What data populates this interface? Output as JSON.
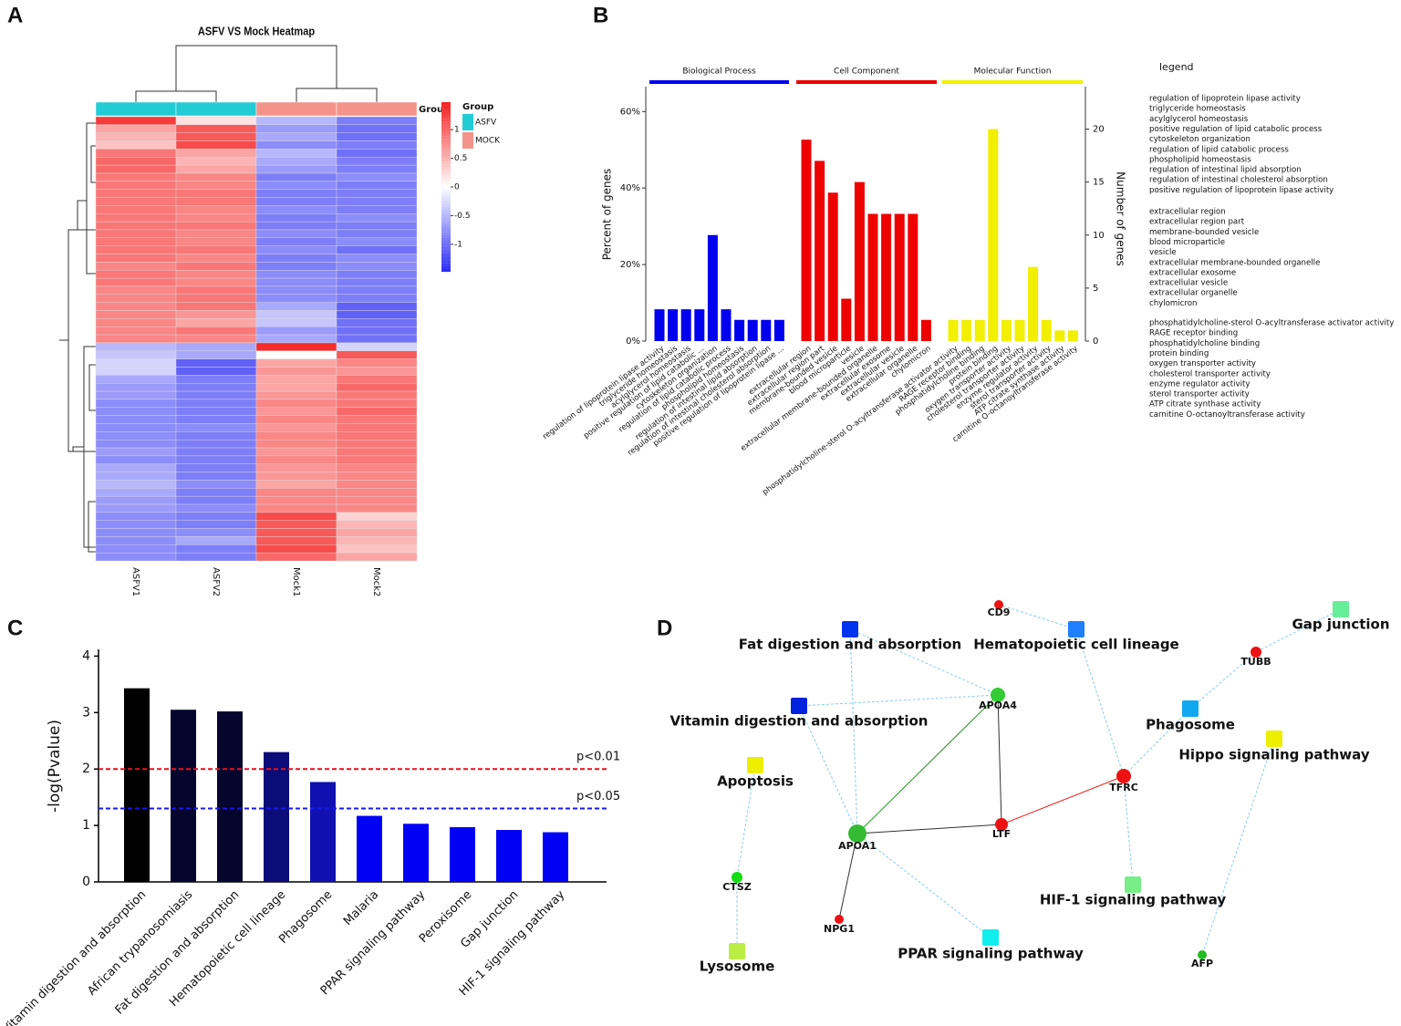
{
  "chart_data": [
    {
      "type": "heatmap",
      "panel": "A",
      "title": "ASFV VS Mock Heatmap",
      "columns": [
        "ASFV1",
        "ASFV2",
        "Mock1",
        "Mock2"
      ],
      "group_label": "Group",
      "groups": [
        {
          "name": "ASFV",
          "color": "#22ccd4",
          "columns": [
            0,
            1
          ]
        },
        {
          "name": "MOCK",
          "color": "#f4938a",
          "columns": [
            2,
            3
          ]
        }
      ],
      "low_color": "#2b2bf5",
      "mid_color": "#ffffff",
      "high_color": "#f52020",
      "clim": [
        -1.48,
        1.48
      ],
      "cticks": [
        -1,
        -0.5,
        0,
        0.5,
        1
      ],
      "rows": [
        [
          1.3,
          0.2,
          -0.5,
          -0.9
        ],
        [
          0.6,
          1.1,
          -0.7,
          -1.0
        ],
        [
          0.5,
          1.1,
          -0.6,
          -1.0
        ],
        [
          0.4,
          1.2,
          -0.8,
          -0.9
        ],
        [
          0.9,
          0.6,
          -0.5,
          -1.0
        ],
        [
          1.0,
          0.5,
          -0.6,
          -0.9
        ],
        [
          1.0,
          0.6,
          -0.7,
          -0.9
        ],
        [
          0.9,
          0.8,
          -0.9,
          -0.8
        ],
        [
          0.9,
          0.8,
          -0.8,
          -0.9
        ],
        [
          0.9,
          0.9,
          -0.9,
          -0.9
        ],
        [
          0.9,
          0.9,
          -0.9,
          -0.9
        ],
        [
          0.9,
          0.8,
          -0.8,
          -0.9
        ],
        [
          0.9,
          0.8,
          -0.9,
          -0.8
        ],
        [
          0.9,
          0.9,
          -0.9,
          -0.9
        ],
        [
          0.9,
          0.8,
          -0.8,
          -0.9
        ],
        [
          0.9,
          0.8,
          -0.9,
          -0.8
        ],
        [
          0.9,
          0.9,
          -0.8,
          -1.0
        ],
        [
          0.9,
          0.8,
          -0.9,
          -0.8
        ],
        [
          0.8,
          0.9,
          -0.9,
          -0.8
        ],
        [
          0.9,
          0.8,
          -0.8,
          -0.9
        ],
        [
          0.9,
          0.8,
          -0.8,
          -0.9
        ],
        [
          0.8,
          0.9,
          -0.8,
          -0.9
        ],
        [
          0.8,
          0.9,
          -0.8,
          -0.9
        ],
        [
          0.8,
          0.9,
          -0.6,
          -1.1
        ],
        [
          0.8,
          0.7,
          -0.4,
          -1.1
        ],
        [
          0.8,
          0.6,
          -0.4,
          -1.0
        ],
        [
          0.8,
          0.9,
          -0.7,
          -1.0
        ],
        [
          0.8,
          0.8,
          -0.6,
          -1.0
        ],
        [
          -0.5,
          -0.6,
          1.4,
          -0.3
        ],
        [
          -0.4,
          -0.6,
          0.0,
          1.1
        ],
        [
          -0.3,
          -1.1,
          0.6,
          0.8
        ],
        [
          -0.3,
          -1.1,
          0.7,
          0.7
        ],
        [
          -0.6,
          -0.9,
          0.6,
          0.9
        ],
        [
          -0.7,
          -0.9,
          0.6,
          1.0
        ],
        [
          -0.7,
          -0.9,
          0.7,
          0.9
        ],
        [
          -0.8,
          -0.9,
          0.8,
          0.9
        ],
        [
          -0.8,
          -0.9,
          0.7,
          1.0
        ],
        [
          -0.8,
          -0.9,
          0.8,
          0.9
        ],
        [
          -0.8,
          -0.8,
          0.7,
          0.9
        ],
        [
          -0.8,
          -0.9,
          0.8,
          0.9
        ],
        [
          -0.8,
          -0.9,
          0.8,
          0.9
        ],
        [
          -0.7,
          -0.9,
          0.7,
          0.9
        ],
        [
          -0.8,
          -0.9,
          0.8,
          0.9
        ],
        [
          -0.6,
          -0.9,
          0.7,
          0.8
        ],
        [
          -0.6,
          -0.9,
          0.7,
          0.8
        ],
        [
          -0.5,
          -0.8,
          0.6,
          0.8
        ],
        [
          -0.6,
          -0.9,
          0.8,
          0.8
        ],
        [
          -0.7,
          -0.9,
          0.8,
          0.8
        ],
        [
          -0.7,
          -0.8,
          0.8,
          0.8
        ],
        [
          -0.8,
          -0.9,
          1.2,
          0.3
        ],
        [
          -0.8,
          -0.9,
          1.1,
          0.5
        ],
        [
          -0.8,
          -0.8,
          1.1,
          0.6
        ],
        [
          -0.8,
          -0.6,
          1.1,
          0.5
        ],
        [
          -0.8,
          -0.9,
          1.2,
          0.4
        ],
        [
          -0.8,
          -0.9,
          1.0,
          0.6
        ]
      ]
    },
    {
      "type": "bar",
      "panel": "B",
      "ylabel": "Percent of genes",
      "y2label": "Number of genes",
      "legend_title": "legend",
      "ylim": [
        0,
        66.5
      ],
      "yticks": [
        {
          "value": 0,
          "label": "0%"
        },
        {
          "value": 20,
          "label": "20%"
        },
        {
          "value": 40,
          "label": "40%"
        },
        {
          "value": 60,
          "label": "60%"
        }
      ],
      "y2lim": [
        0,
        24
      ],
      "y2ticks": [
        0,
        5,
        10,
        15,
        20
      ],
      "groups": [
        {
          "name": "Biological Process",
          "color": "#0000ee",
          "axis": "y2",
          "categories": [
            "regulation of lipoprotein lipase activity",
            "triglyceride homeostasis",
            "acylglycerol homeostasis",
            "positive regulation of lipid catabolic ...",
            "cytoskeleton organization",
            "regulation of lipid catabolic process",
            "phospholipid homeostasis",
            "regulation of intestinal lipid absorption",
            "regulation of intestinal cholesterol absorption",
            "positive regulation of lipoprotein lipase ..."
          ],
          "values": [
            3,
            3,
            3,
            3,
            10,
            3,
            2,
            2,
            2,
            2
          ],
          "legend_items": [
            "regulation of lipoprotein lipase activity",
            "triglyceride homeostasis",
            "acylglycerol homeostasis",
            "positive regulation of lipid catabolic process",
            "cytoskeleton organization",
            "regulation of lipid catabolic process",
            "phospholipid homeostasis",
            "regulation of intestinal lipid absorption",
            "regulation of intestinal cholesterol absorption",
            "positive regulation of lipoprotein lipase activity"
          ]
        },
        {
          "name": "Cell Component",
          "color": "#ee0000",
          "axis": "y2",
          "categories": [
            "extracellular region",
            "extracellular region part",
            "membrane-bounded vesicle",
            "blood microparticle",
            "vesicle",
            "extracellular membrane-bounded organelle",
            "extracellular exosome",
            "extracellular vesicle",
            "extracellular organelle",
            "chylomicron"
          ],
          "values": [
            19,
            17,
            14,
            4,
            15,
            12,
            12,
            12,
            12,
            2
          ],
          "legend_items": [
            "extracellular region",
            "extracellular region part",
            "membrane-bounded vesicle",
            "blood microparticle",
            "vesicle",
            "extracellular membrane-bounded organelle",
            "extracellular exosome",
            "extracellular vesicle",
            "extracellular organelle",
            "chylomicron"
          ]
        },
        {
          "name": "Molecular Function",
          "color": "#f2ef00",
          "axis": "y2",
          "categories": [
            "phosphatidylcholine-sterol O-acyltransferase activator activity",
            "RAGE receptor binding",
            "phosphatidylcholine binding",
            "protein binding",
            "oxygen transporter activity",
            "cholesterol transporter activity",
            "enzyme regulator activity",
            "sterol transporter activity",
            "ATP citrate synthase activity",
            "carnitine O-octanoyltransferase activity"
          ],
          "values": [
            2,
            2,
            2,
            20,
            2,
            2,
            7,
            2,
            1,
            1
          ],
          "legend_items": [
            "phosphatidylcholine-sterol O-acyltransferase activator activity",
            "RAGE receptor binding",
            "phosphatidylcholine binding",
            "protein binding",
            "oxygen transporter activity",
            "cholesterol transporter activity",
            "enzyme regulator activity",
            "sterol transporter activity",
            "ATP citrate synthase activity",
            "carnitine O-octanoyltransferase activity"
          ]
        }
      ]
    },
    {
      "type": "bar",
      "panel": "C",
      "ylabel": "-log(Pvalue)",
      "categories": [
        "Vitamin digestion and absorption",
        "African trypanosomiasis",
        "Fat digestion and absorption",
        "Hematopoietic cell lineage",
        "Phagosome",
        "Malaria",
        "PPAR signaling pathway",
        "Peroxisome",
        "Gap junction",
        "HIF-1 signaling pathway"
      ],
      "values": [
        3.43,
        3.05,
        3.02,
        2.3,
        1.77,
        1.17,
        1.03,
        0.97,
        0.92,
        0.88
      ],
      "colors": [
        "#000000",
        "#05052e",
        "#05052e",
        "#0c0c78",
        "#1010b0",
        "#0000f5",
        "#0000f5",
        "#0000f5",
        "#0000f5",
        "#0000f5"
      ],
      "ylim": [
        0,
        4.12
      ],
      "yticks": [
        0,
        1,
        2,
        3,
        4
      ],
      "thresholds": [
        {
          "value": 2,
          "label": "p<0.01",
          "color": "#e81020"
        },
        {
          "value": 1.3,
          "label": "p<0.05",
          "color": "#1818ee"
        }
      ]
    },
    {
      "type": "network",
      "panel": "D",
      "nodes": [
        {
          "label": "CD9",
          "shape": "circle",
          "color": "#ee1111"
        },
        {
          "label": "Hematopoietic cell lineage",
          "shape": "square",
          "color": "#1e80ff"
        },
        {
          "label": "Gap junction",
          "shape": "square",
          "color": "#66ee99"
        },
        {
          "label": "TUBB",
          "shape": "circle",
          "color": "#ee1111"
        },
        {
          "label": "Fat digestion and absorption",
          "shape": "square",
          "color": "#0033ee"
        },
        {
          "label": "APOA4",
          "shape": "circle",
          "color": "#33cc33"
        },
        {
          "label": "Vitamin digestion and absorption",
          "shape": "square",
          "color": "#0022dd"
        },
        {
          "label": "Phagosome",
          "shape": "square",
          "color": "#10a8f0"
        },
        {
          "label": "Hippo signaling pathway",
          "shape": "square",
          "color": "#eeee00"
        },
        {
          "label": "Apoptosis",
          "shape": "square",
          "color": "#eeee00"
        },
        {
          "label": "TFRC",
          "shape": "circle",
          "color": "#ee1111"
        },
        {
          "label": "LTF",
          "shape": "circle",
          "color": "#ee1111"
        },
        {
          "label": "APOA1",
          "shape": "circle",
          "color": "#33bb33"
        },
        {
          "label": "CTSZ",
          "shape": "circle",
          "color": "#11dd11"
        },
        {
          "label": "HIF-1 signaling pathway",
          "shape": "square",
          "color": "#77ee88"
        },
        {
          "label": "NPG1",
          "shape": "circle",
          "color": "#ee1111"
        },
        {
          "label": "PPAR signaling pathway",
          "shape": "square",
          "color": "#11eeee"
        },
        {
          "label": "Lysosome",
          "shape": "square",
          "color": "#bbee44"
        },
        {
          "label": "AFP",
          "shape": "circle",
          "color": "#22bb22"
        }
      ],
      "edges": [
        {
          "source": 0,
          "target": 1,
          "color": "#8ccbe8",
          "style": "dashed"
        },
        {
          "source": 1,
          "target": 10,
          "color": "#8ccbe8",
          "style": "dashed"
        },
        {
          "source": 2,
          "target": 3,
          "color": "#8ccbe8",
          "style": "dashed"
        },
        {
          "source": 3,
          "target": 7,
          "color": "#8ccbe8",
          "style": "dashed"
        },
        {
          "source": 7,
          "target": 10,
          "color": "#8ccbe8",
          "style": "dashed"
        },
        {
          "source": 10,
          "target": 14,
          "color": "#8ccbe8",
          "style": "dashed"
        },
        {
          "source": 10,
          "target": 11,
          "color": "#ee2222",
          "style": "solid"
        },
        {
          "source": 11,
          "target": 5,
          "color": "#333333",
          "style": "solid"
        },
        {
          "source": 11,
          "target": 12,
          "color": "#333333",
          "style": "solid"
        },
        {
          "source": 5,
          "target": 12,
          "color": "#229922",
          "style": "solid"
        },
        {
          "source": 4,
          "target": 5,
          "color": "#8ccbe8",
          "style": "dashed"
        },
        {
          "source": 4,
          "target": 12,
          "color": "#8ccbe8",
          "style": "dashed"
        },
        {
          "source": 6,
          "target": 5,
          "color": "#8ccbe8",
          "style": "dashed"
        },
        {
          "source": 6,
          "target": 12,
          "color": "#8ccbe8",
          "style": "dashed"
        },
        {
          "source": 12,
          "target": 15,
          "color": "#333333",
          "style": "solid"
        },
        {
          "source": 12,
          "target": 16,
          "color": "#8ccbe8",
          "style": "dashed"
        },
        {
          "source": 9,
          "target": 13,
          "color": "#8ccbe8",
          "style": "dashed"
        },
        {
          "source": 13,
          "target": 17,
          "color": "#8ccbe8",
          "style": "dashed"
        },
        {
          "source": 8,
          "target": 18,
          "color": "#8ccbe8",
          "style": "dashed"
        }
      ]
    }
  ]
}
